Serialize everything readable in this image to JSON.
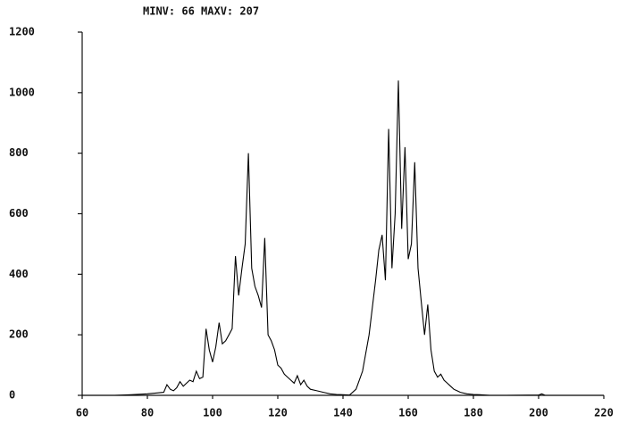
{
  "chart_data": {
    "type": "line",
    "title": "MINV: 66 MAXV: 207",
    "x": [
      60,
      65,
      70,
      75,
      80,
      83,
      85,
      86,
      87,
      88,
      89,
      90,
      91,
      92,
      93,
      94,
      95,
      96,
      97,
      98,
      99,
      100,
      101,
      102,
      103,
      104,
      105,
      106,
      107,
      108,
      109,
      110,
      111,
      112,
      113,
      114,
      115,
      116,
      117,
      118,
      119,
      120,
      121,
      122,
      123,
      124,
      125,
      126,
      127,
      128,
      129,
      130,
      132,
      134,
      136,
      138,
      140,
      142,
      144,
      146,
      148,
      150,
      151,
      152,
      153,
      154,
      155,
      156,
      157,
      158,
      159,
      160,
      161,
      162,
      163,
      164,
      165,
      166,
      167,
      168,
      169,
      170,
      171,
      172,
      173,
      174,
      175,
      176,
      178,
      180,
      182,
      185,
      190,
      200,
      201,
      202,
      210,
      220
    ],
    "values": [
      0,
      0,
      0,
      2,
      5,
      8,
      10,
      35,
      20,
      15,
      25,
      45,
      30,
      40,
      50,
      45,
      80,
      55,
      60,
      220,
      150,
      110,
      160,
      240,
      170,
      180,
      200,
      220,
      460,
      330,
      420,
      500,
      800,
      420,
      360,
      330,
      290,
      520,
      200,
      180,
      150,
      100,
      90,
      70,
      60,
      50,
      40,
      65,
      35,
      50,
      30,
      20,
      15,
      10,
      5,
      3,
      2,
      1,
      20,
      80,
      200,
      380,
      480,
      530,
      380,
      880,
      420,
      600,
      1040,
      550,
      820,
      450,
      500,
      770,
      420,
      310,
      200,
      300,
      150,
      80,
      60,
      70,
      50,
      40,
      30,
      20,
      15,
      10,
      5,
      3,
      2,
      0,
      0,
      1,
      5,
      0,
      0,
      0
    ],
    "color": "#000000",
    "xlim": [
      60,
      220
    ],
    "xticks": [
      60,
      80,
      100,
      120,
      140,
      160,
      180,
      200,
      220
    ],
    "ylim": [
      0,
      1200
    ],
    "yticks": [
      0,
      200,
      400,
      600,
      800,
      1000,
      1200
    ]
  }
}
